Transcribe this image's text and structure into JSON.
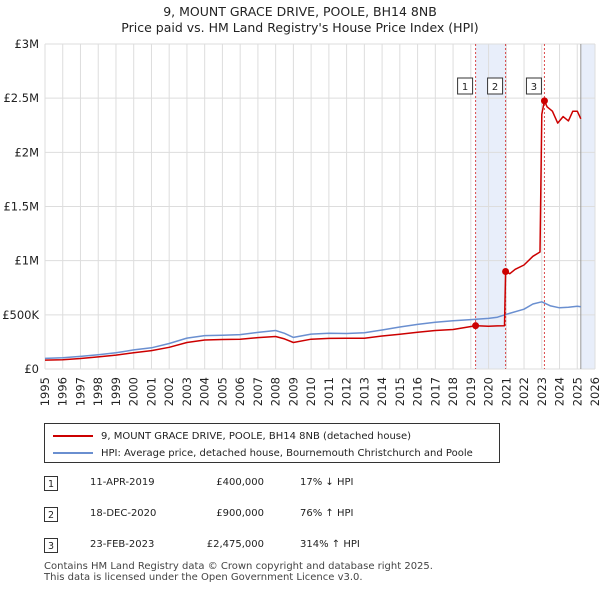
{
  "title_line1": "9, MOUNT GRACE DRIVE, POOLE, BH14 8NB",
  "title_line2": "Price paid vs. HM Land Registry's House Price Index (HPI)",
  "colors": {
    "price_line": "#cc0000",
    "hpi_line": "#6a8fd0",
    "shade": "#e8eefa",
    "vline": "#cc0000",
    "grid": "#dddddd"
  },
  "chart_data": {
    "type": "line",
    "y_ticks": [
      0,
      500000,
      1000000,
      1500000,
      2000000,
      2500000,
      3000000
    ],
    "y_tick_labels": [
      "£0",
      "£500K",
      "£1M",
      "£1.5M",
      "£2M",
      "£2.5M",
      "£3M"
    ],
    "ylim": [
      0,
      3000000
    ],
    "xlim": [
      1995,
      2026
    ],
    "x_ticks": [
      "1995",
      "1996",
      "1997",
      "1998",
      "1999",
      "2000",
      "2001",
      "2002",
      "2003",
      "2004",
      "2005",
      "2006",
      "2007",
      "2008",
      "2009",
      "2010",
      "2011",
      "2012",
      "2013",
      "2014",
      "2015",
      "2016",
      "2017",
      "2018",
      "2019",
      "2020",
      "2021",
      "2022",
      "2023",
      "2024",
      "2025",
      "2026"
    ],
    "series": [
      {
        "name": "9, MOUNT GRACE DRIVE, POOLE, BH14 8NB (detached house)",
        "x": [
          1995.0,
          1996.0,
          1997.0,
          1998.0,
          1999.0,
          2000.0,
          2001.0,
          2002.0,
          2003.0,
          2004.0,
          2005.0,
          2006.0,
          2007.0,
          2008.0,
          2008.5,
          2009.0,
          2010.0,
          2011.0,
          2012.0,
          2013.0,
          2014.0,
          2015.0,
          2016.0,
          2017.0,
          2018.0,
          2019.27,
          2019.5,
          2020.0,
          2020.5,
          2020.9,
          2020.96,
          2021.2,
          2021.5,
          2022.0,
          2022.5,
          2022.9,
          2023.0,
          2023.15,
          2023.3,
          2023.6,
          2023.9,
          2024.2,
          2024.5,
          2024.75,
          2025.0,
          2025.2
        ],
        "values": [
          82000,
          86000,
          97000,
          112000,
          128000,
          150000,
          170000,
          200000,
          245000,
          268000,
          272000,
          275000,
          290000,
          300000,
          278000,
          245000,
          275000,
          282000,
          283000,
          283000,
          305000,
          320000,
          340000,
          355000,
          365000,
          400000,
          398000,
          394000,
          398000,
          400000,
          900000,
          880000,
          920000,
          960000,
          1040000,
          1080000,
          2350000,
          2475000,
          2420000,
          2380000,
          2270000,
          2330000,
          2290000,
          2380000,
          2380000,
          2310000
        ]
      },
      {
        "name": "HPI: Average price, detached house, Bournemouth Christchurch and Poole",
        "x": [
          1995.0,
          1996.0,
          1997.0,
          1998.0,
          1999.0,
          2000.0,
          2001.0,
          2002.0,
          2003.0,
          2004.0,
          2005.0,
          2006.0,
          2007.0,
          2008.0,
          2008.5,
          2009.0,
          2010.0,
          2011.0,
          2012.0,
          2013.0,
          2014.0,
          2015.0,
          2016.0,
          2017.0,
          2018.0,
          2019.0,
          2020.0,
          2020.5,
          2021.0,
          2022.0,
          2022.5,
          2023.0,
          2023.5,
          2024.0,
          2024.5,
          2025.0,
          2025.2
        ],
        "values": [
          98000,
          103000,
          116000,
          132000,
          150000,
          176000,
          196000,
          235000,
          285000,
          308000,
          312000,
          318000,
          338000,
          355000,
          330000,
          292000,
          322000,
          330000,
          328000,
          334000,
          360000,
          388000,
          412000,
          432000,
          446000,
          456000,
          467000,
          478000,
          505000,
          552000,
          600000,
          620000,
          582000,
          565000,
          570000,
          580000,
          575000
        ]
      }
    ],
    "markers": [
      {
        "label": "1",
        "x": 2019.27,
        "y": 400000
      },
      {
        "label": "2",
        "x": 2020.96,
        "y": 900000
      },
      {
        "label": "3",
        "x": 2023.15,
        "y": 2475000
      }
    ],
    "shaded_ranges": [
      [
        2019.27,
        2020.96
      ],
      [
        2025.2,
        2026.0
      ]
    ]
  },
  "legend": {
    "price_label": "9, MOUNT GRACE DRIVE, POOLE, BH14 8NB (detached house)",
    "hpi_label": "HPI: Average price, detached house, Bournemouth Christchurch and Poole"
  },
  "transactions": [
    {
      "num": "1",
      "date": "11-APR-2019",
      "price": "£400,000",
      "hpi": "17% ↓ HPI"
    },
    {
      "num": "2",
      "date": "18-DEC-2020",
      "price": "£900,000",
      "hpi": "76% ↑ HPI"
    },
    {
      "num": "3",
      "date": "23-FEB-2023",
      "price": "£2,475,000",
      "hpi": "314% ↑ HPI"
    }
  ],
  "footer_line1": "Contains HM Land Registry data © Crown copyright and database right 2025.",
  "footer_line2": "This data is licensed under the Open Government Licence v3.0."
}
